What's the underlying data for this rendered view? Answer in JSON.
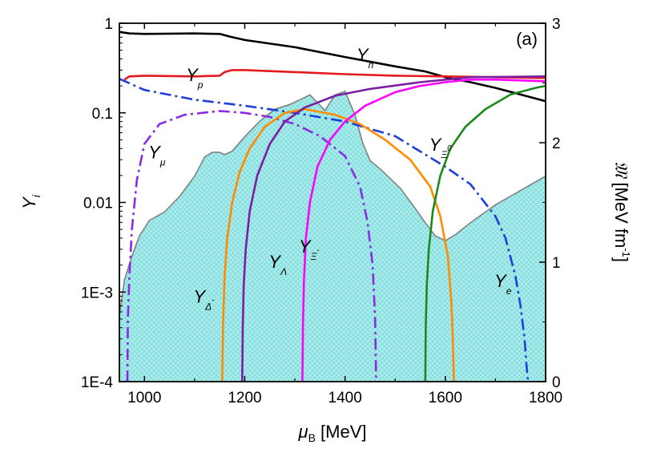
{
  "chart_data": {
    "type": "line",
    "panel_label": "(a)",
    "xlabel": {
      "base": "μ",
      "sub": "B",
      "unit": " [MeV]"
    },
    "ylabel_left": {
      "base": "Y",
      "sub": "i"
    },
    "ylabel_right": {
      "script": "𝔐",
      "unit": " [MeV fm",
      "sup": "-1",
      "close": "]"
    },
    "xlim": [
      950,
      1800
    ],
    "ylim_left": [
      0.0001,
      1
    ],
    "ylim_left_scale": "log",
    "ylim_right": [
      0,
      3
    ],
    "x_ticks": [
      {
        "v": 1000,
        "label": "1000"
      },
      {
        "v": 1200,
        "label": "1200"
      },
      {
        "v": 1400,
        "label": "1400"
      },
      {
        "v": 1600,
        "label": "1600"
      },
      {
        "v": 1800,
        "label": "1800"
      }
    ],
    "y_left_ticks": [
      {
        "v": 1,
        "label": "1"
      },
      {
        "v": 0.1,
        "label": "0.1"
      },
      {
        "v": 0.01,
        "label": "0.01"
      },
      {
        "v": 0.001,
        "label": "1E-3"
      },
      {
        "v": 0.0001,
        "label": "1E-4"
      }
    ],
    "y_right_ticks": [
      {
        "v": 0,
        "label": "0"
      },
      {
        "v": 1,
        "label": "1"
      },
      {
        "v": 2,
        "label": "2"
      },
      {
        "v": 3,
        "label": "3"
      }
    ],
    "filled_area": {
      "name": "𝔐 (right axis)",
      "fill": "#a8ecec",
      "stroke": "#808080",
      "x": [
        950,
        960,
        975,
        990,
        1010,
        1040,
        1070,
        1100,
        1120,
        1135,
        1150,
        1160,
        1175,
        1200,
        1230,
        1260,
        1290,
        1330,
        1360,
        1380,
        1400,
        1420,
        1435,
        1450,
        1470,
        1490,
        1510,
        1540,
        1560,
        1580,
        1600,
        1620,
        1650,
        1700,
        1750,
        1800
      ],
      "y": [
        0.55,
        0.85,
        1.05,
        1.22,
        1.35,
        1.42,
        1.55,
        1.72,
        1.88,
        1.92,
        1.92,
        1.9,
        1.93,
        2.05,
        2.18,
        2.28,
        2.32,
        2.4,
        2.27,
        2.4,
        2.43,
        2.23,
        2.0,
        1.85,
        1.78,
        1.7,
        1.62,
        1.45,
        1.33,
        1.22,
        1.18,
        1.23,
        1.33,
        1.48,
        1.6,
        1.72
      ]
    },
    "series": [
      {
        "name": "Y_n",
        "color": "#000000",
        "style": "solid",
        "x": [
          950,
          970,
          1000,
          1100,
          1150,
          1170,
          1200,
          1300,
          1400,
          1500,
          1560,
          1600,
          1650,
          1700,
          1750,
          1800
        ],
        "y": [
          0.8,
          0.77,
          0.76,
          0.77,
          0.76,
          0.71,
          0.65,
          0.54,
          0.42,
          0.33,
          0.29,
          0.25,
          0.22,
          0.19,
          0.16,
          0.135
        ]
      },
      {
        "name": "Y_p",
        "color": "#e31a1c",
        "style": "solid",
        "x": [
          960,
          970,
          1000,
          1100,
          1150,
          1160,
          1175,
          1200,
          1300,
          1400,
          1500,
          1600,
          1700,
          1800
        ],
        "y": [
          0.235,
          0.255,
          0.26,
          0.255,
          0.26,
          0.285,
          0.3,
          0.3,
          0.285,
          0.27,
          0.26,
          0.255,
          0.25,
          0.245
        ]
      },
      {
        "name": "Y_e",
        "color": "#1f3fdc",
        "style": "dashdot",
        "x": [
          950,
          1000,
          1100,
          1200,
          1300,
          1400,
          1500,
          1600,
          1650,
          1700,
          1720,
          1740,
          1750,
          1758,
          1762,
          1765
        ],
        "y": [
          0.24,
          0.18,
          0.14,
          0.12,
          0.1,
          0.08,
          0.055,
          0.025,
          0.016,
          0.007,
          0.004,
          0.0015,
          0.0007,
          0.0003,
          0.00015,
          0.0001
        ]
      },
      {
        "name": "Y_μ",
        "color": "#8a2be2",
        "style": "dashdot",
        "x": [
          966,
          967,
          970,
          975,
          985,
          1000,
          1030,
          1080,
          1150,
          1200,
          1250,
          1300,
          1350,
          1400,
          1430,
          1445,
          1455,
          1460,
          1462
        ],
        "y": [
          0.0001,
          0.0005,
          0.0015,
          0.005,
          0.018,
          0.045,
          0.075,
          0.095,
          0.105,
          0.1,
          0.09,
          0.075,
          0.055,
          0.033,
          0.015,
          0.006,
          0.002,
          0.0005,
          0.0001
        ]
      },
      {
        "name": "Y_Δ⁻",
        "color": "#ff8c00",
        "style": "solid",
        "x": [
          1155,
          1157,
          1160,
          1165,
          1175,
          1190,
          1210,
          1240,
          1280,
          1320,
          1380,
          1430,
          1480,
          1530,
          1570,
          1590,
          1605,
          1612,
          1615,
          1617
        ],
        "y": [
          0.0001,
          0.0005,
          0.0015,
          0.004,
          0.01,
          0.022,
          0.04,
          0.07,
          0.1,
          0.11,
          0.095,
          0.075,
          0.05,
          0.03,
          0.015,
          0.007,
          0.0025,
          0.0008,
          0.0003,
          0.0001
        ]
      },
      {
        "name": "Y_Λ",
        "color": "#7b1fa2",
        "style": "solid",
        "x": [
          1195,
          1196,
          1198,
          1202,
          1210,
          1225,
          1250,
          1280,
          1320,
          1380,
          1450,
          1550,
          1650,
          1800
        ],
        "y": [
          0.0001,
          0.0004,
          0.0012,
          0.003,
          0.008,
          0.02,
          0.045,
          0.08,
          0.115,
          0.155,
          0.185,
          0.22,
          0.25,
          0.255
        ]
      },
      {
        "name": "Y_Ξ⁻",
        "color": "#ff00ff",
        "style": "solid",
        "x": [
          1315,
          1316,
          1318,
          1322,
          1330,
          1345,
          1370,
          1400,
          1440,
          1500,
          1550,
          1600,
          1650,
          1700,
          1750,
          1800
        ],
        "y": [
          0.0001,
          0.0004,
          0.0013,
          0.004,
          0.01,
          0.025,
          0.05,
          0.08,
          0.12,
          0.17,
          0.2,
          0.22,
          0.235,
          0.235,
          0.23,
          0.225
        ]
      },
      {
        "name": "Y_Ξ⁰",
        "color": "#1a8a1a",
        "style": "solid",
        "x": [
          1560,
          1561,
          1563,
          1567,
          1575,
          1590,
          1610,
          1640,
          1680,
          1730,
          1780,
          1800
        ],
        "y": [
          0.0001,
          0.0004,
          0.0012,
          0.003,
          0.008,
          0.02,
          0.04,
          0.07,
          0.11,
          0.16,
          0.19,
          0.2
        ]
      }
    ],
    "curve_labels": [
      {
        "base": "Y",
        "sub": "n",
        "at": [
          1410,
          0.55
        ],
        "dx": 8,
        "dy": 18
      },
      {
        "base": "Y",
        "sub": "p",
        "at": [
          1070,
          0.33
        ],
        "dx": 8,
        "dy": 18
      },
      {
        "base": "Y",
        "sub": "μ",
        "at": [
          995,
          0.045
        ],
        "dx": 8,
        "dy": 18
      },
      {
        "base": "Y",
        "sub": "Λ",
        "at": [
          1235,
          0.0027
        ],
        "dx": 8,
        "dy": 18
      },
      {
        "base": "Y",
        "sub": "Δ",
        "sup": "-",
        "at": [
          1085,
          0.0011
        ],
        "dx": 8,
        "dy": 18
      },
      {
        "base": "Y",
        "sub": "Ξ",
        "sup": "-",
        "at": [
          1295,
          0.004
        ],
        "dx": 8,
        "dy": 18
      },
      {
        "base": "Y",
        "sub": "Ξ",
        "sup": "0",
        "at": [
          1555,
          0.055
        ],
        "dx": 8,
        "dy": 18
      },
      {
        "base": "Y",
        "sub": "e",
        "at": [
          1685,
          0.00165
        ],
        "dx": 8,
        "dy": 18
      }
    ]
  }
}
